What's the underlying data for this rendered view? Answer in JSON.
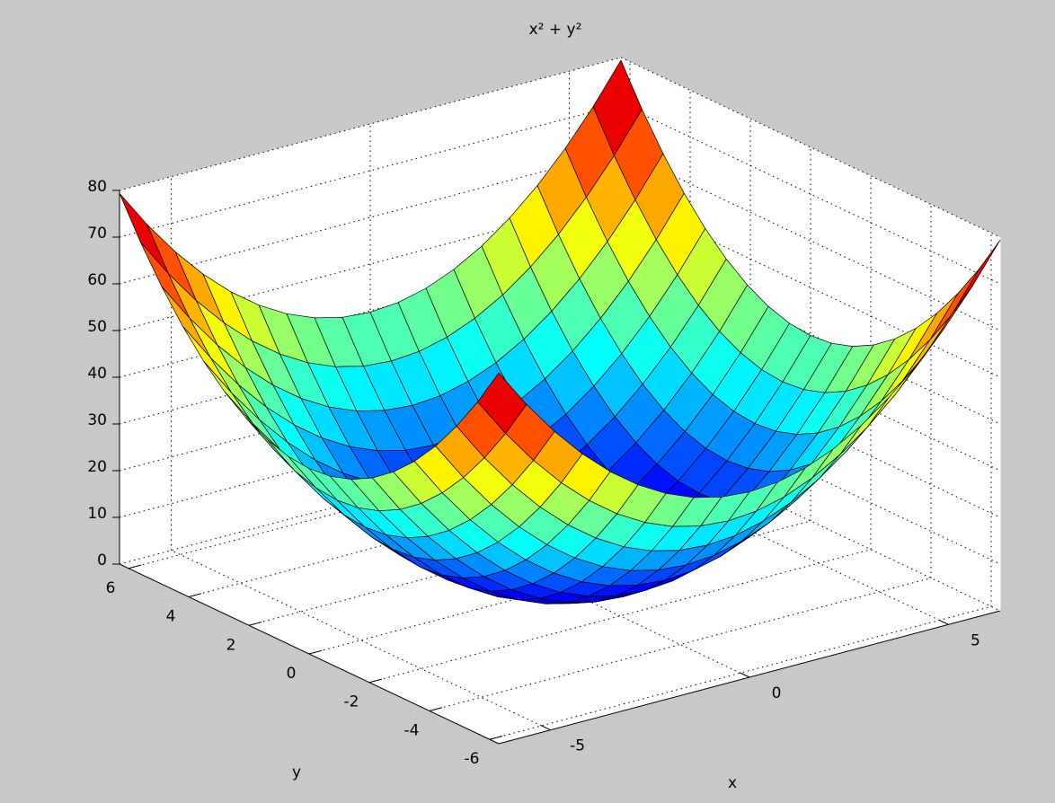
{
  "chart_data": {
    "type": "surface",
    "title": "x² + y²",
    "x_label": "x",
    "y_label": "y",
    "x": [
      -6.3,
      -5.6,
      -4.9,
      -4.2,
      -3.5,
      -2.8,
      -2.1,
      -1.4,
      -0.7,
      0,
      0.7,
      1.4,
      2.1,
      2.8,
      3.5,
      4.2,
      4.9,
      5.6,
      6.3
    ],
    "y": [
      -6.3,
      -5.6,
      -4.9,
      -4.2,
      -3.5,
      -2.8,
      -2.1,
      -1.4,
      -0.7,
      0,
      0.7,
      1.4,
      2.1,
      2.8,
      3.5,
      4.2,
      4.9,
      5.6,
      6.3
    ],
    "z": [
      [
        79.38,
        71.05,
        63.7,
        57.33,
        51.94,
        47.53,
        44.1,
        41.65,
        40.18,
        39.69,
        40.18,
        41.65,
        44.1,
        47.53,
        51.94,
        57.33,
        63.7,
        71.05,
        79.38
      ],
      [
        71.05,
        62.72,
        55.37,
        49,
        43.61,
        39.2,
        35.77,
        33.32,
        31.85,
        31.36,
        31.85,
        33.32,
        35.77,
        39.2,
        43.61,
        49,
        55.37,
        62.72,
        71.05
      ],
      [
        63.7,
        55.37,
        48.02,
        41.65,
        36.26,
        31.85,
        28.42,
        25.97,
        24.5,
        24.01,
        24.5,
        25.97,
        28.42,
        31.85,
        36.26,
        41.65,
        48.02,
        55.37,
        63.7
      ],
      [
        57.33,
        49,
        41.65,
        35.28,
        29.89,
        25.48,
        22.05,
        19.6,
        18.13,
        17.64,
        18.13,
        19.6,
        22.05,
        25.48,
        29.89,
        35.28,
        41.65,
        49,
        57.33
      ],
      [
        51.94,
        43.61,
        36.26,
        29.89,
        24.5,
        20.09,
        16.66,
        14.21,
        12.74,
        12.25,
        12.74,
        14.21,
        16.66,
        20.09,
        24.5,
        29.89,
        36.26,
        43.61,
        51.94
      ],
      [
        47.53,
        39.2,
        31.85,
        25.48,
        20.09,
        15.68,
        12.25,
        9.8,
        8.33,
        7.84,
        8.33,
        9.8,
        12.25,
        15.68,
        20.09,
        25.48,
        31.85,
        39.2,
        47.53
      ],
      [
        44.1,
        35.77,
        28.42,
        22.05,
        16.66,
        12.25,
        8.82,
        6.37,
        4.9,
        4.41,
        4.9,
        6.37,
        8.82,
        12.25,
        16.66,
        22.05,
        28.42,
        35.77,
        44.1
      ],
      [
        41.65,
        33.32,
        25.97,
        19.6,
        14.21,
        9.8,
        6.37,
        3.92,
        2.45,
        1.96,
        2.45,
        3.92,
        6.37,
        9.8,
        14.21,
        19.6,
        25.97,
        33.32,
        41.65
      ],
      [
        40.18,
        31.85,
        24.5,
        18.13,
        12.74,
        8.33,
        4.9,
        2.45,
        0.98,
        0.49,
        0.98,
        2.45,
        4.9,
        8.33,
        12.74,
        18.13,
        24.5,
        31.85,
        40.18
      ],
      [
        39.69,
        31.36,
        24.01,
        17.64,
        12.25,
        7.84,
        4.41,
        1.96,
        0.49,
        0,
        0.49,
        1.96,
        4.41,
        7.84,
        12.25,
        17.64,
        24.01,
        31.36,
        39.69
      ],
      [
        40.18,
        31.85,
        24.5,
        18.13,
        12.74,
        8.33,
        4.9,
        2.45,
        0.98,
        0.49,
        0.98,
        2.45,
        4.9,
        8.33,
        12.74,
        18.13,
        24.5,
        31.85,
        40.18
      ],
      [
        41.65,
        33.32,
        25.97,
        19.6,
        14.21,
        9.8,
        6.37,
        3.92,
        2.45,
        1.96,
        2.45,
        3.92,
        6.37,
        9.8,
        14.21,
        19.6,
        25.97,
        33.32,
        41.65
      ],
      [
        44.1,
        35.77,
        28.42,
        22.05,
        16.66,
        12.25,
        8.82,
        6.37,
        4.9,
        4.41,
        4.9,
        6.37,
        8.82,
        12.25,
        16.66,
        22.05,
        28.42,
        35.77,
        44.1
      ],
      [
        47.53,
        39.2,
        31.85,
        25.48,
        20.09,
        15.68,
        12.25,
        9.8,
        8.33,
        7.84,
        8.33,
        9.8,
        12.25,
        15.68,
        20.09,
        25.48,
        31.85,
        39.2,
        47.53
      ],
      [
        51.94,
        43.61,
        36.26,
        29.89,
        24.5,
        20.09,
        16.66,
        14.21,
        12.74,
        12.25,
        12.74,
        14.21,
        16.66,
        20.09,
        24.5,
        29.89,
        36.26,
        43.61,
        51.94
      ],
      [
        57.33,
        49,
        41.65,
        35.28,
        29.89,
        25.48,
        22.05,
        19.6,
        18.13,
        17.64,
        18.13,
        19.6,
        22.05,
        25.48,
        29.89,
        35.28,
        41.65,
        49,
        57.33
      ],
      [
        63.7,
        55.37,
        48.02,
        41.65,
        36.26,
        31.85,
        28.42,
        25.97,
        24.5,
        24.01,
        24.5,
        25.97,
        28.42,
        31.85,
        36.26,
        41.65,
        48.02,
        55.37,
        63.7
      ],
      [
        71.05,
        62.72,
        55.37,
        49,
        43.61,
        39.2,
        35.77,
        33.32,
        31.85,
        31.36,
        31.85,
        33.32,
        35.77,
        39.2,
        43.61,
        49,
        55.37,
        62.72,
        71.05
      ],
      [
        79.38,
        71.05,
        63.7,
        57.33,
        51.94,
        47.53,
        44.1,
        41.65,
        40.18,
        39.69,
        40.18,
        41.65,
        44.1,
        47.53,
        51.94,
        57.33,
        63.7,
        71.05,
        79.38
      ]
    ],
    "xlim": [
      -6.3,
      6.3
    ],
    "ylim": [
      -6.3,
      6.3
    ],
    "zlim": [
      0,
      80
    ],
    "xticks": [
      -5,
      0,
      5
    ],
    "yticks": [
      -6,
      -4,
      -2,
      0,
      2,
      4,
      6
    ],
    "zticks": [
      0,
      10,
      20,
      30,
      40,
      50,
      60,
      70,
      80
    ],
    "grid": true,
    "colormap": "jet",
    "edge_color": "#000000"
  }
}
